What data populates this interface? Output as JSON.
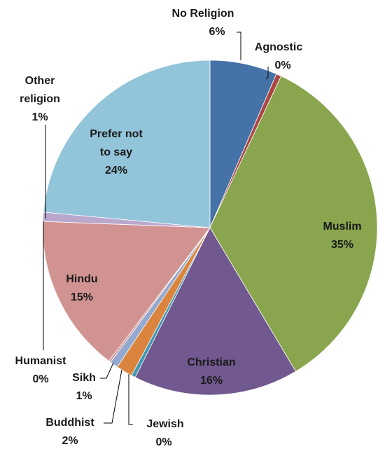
{
  "chart_data": {
    "type": "pie",
    "title": "",
    "start_angle_deg": 0,
    "direction": "clockwise",
    "slices": [
      {
        "name": "No Religion",
        "value": 6.6,
        "label_value": "6%",
        "color": "#4572a7"
      },
      {
        "name": "Agnostic",
        "value": 0.5,
        "label_value": "0%",
        "color": "#aa4643"
      },
      {
        "name": "Muslim",
        "value": 35.0,
        "label_value": "35%",
        "color": "#89a54e"
      },
      {
        "name": "Christian",
        "value": 16.2,
        "label_value": "16%",
        "color": "#71588f"
      },
      {
        "name": "Jewish",
        "value": 0.4,
        "label_value": "0%",
        "color": "#4198af"
      },
      {
        "name": "Buddhist",
        "value": 1.6,
        "label_value": "2%",
        "color": "#db843d"
      },
      {
        "name": "Sikh",
        "value": 0.8,
        "label_value": "1%",
        "color": "#93a9cf"
      },
      {
        "name": "Humanist",
        "value": 0.2,
        "label_value": "0%",
        "color": "#d19392"
      },
      {
        "name": "Hindu",
        "value": 15.5,
        "label_value": "15%",
        "color": "#d19392"
      },
      {
        "name": "Other religion",
        "value": 0.9,
        "label_value": "1%",
        "color": "#b9a7cc"
      },
      {
        "name": "Prefer not to say",
        "value": 23.9,
        "label_value": "24%",
        "color": "#92c5da"
      }
    ]
  }
}
